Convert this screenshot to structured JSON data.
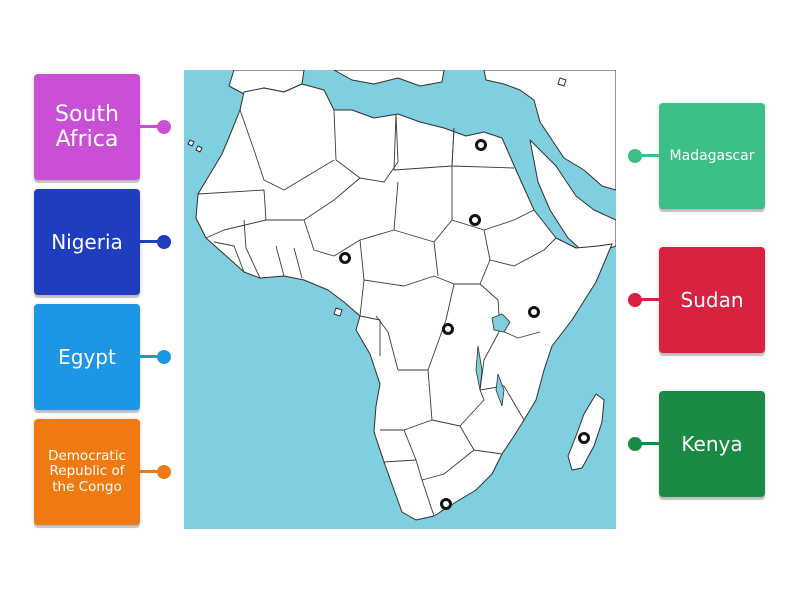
{
  "map": {
    "markers": [
      {
        "id": "egypt",
        "x": 0.687,
        "y": 0.163
      },
      {
        "id": "sudan",
        "x": 0.673,
        "y": 0.326
      },
      {
        "id": "nigeria",
        "x": 0.373,
        "y": 0.41
      },
      {
        "id": "drc",
        "x": 0.612,
        "y": 0.565
      },
      {
        "id": "kenya",
        "x": 0.81,
        "y": 0.528
      },
      {
        "id": "madagascar",
        "x": 0.925,
        "y": 0.802
      },
      {
        "id": "south_africa",
        "x": 0.606,
        "y": 0.945
      }
    ]
  },
  "left_labels": [
    {
      "text": "South Africa",
      "color": "#c84fd6",
      "line_color": "#c84fd6"
    },
    {
      "text": "Nigeria",
      "color": "#1f3ebf",
      "line_color": "#1f3ebf"
    },
    {
      "text": "Egypt",
      "color": "#1e96e6",
      "line_color": "#1e96e6"
    },
    {
      "text": "Democratic Republic of the Congo",
      "color": "#f07a12",
      "line_color": "#f07a12"
    }
  ],
  "right_labels": [
    {
      "text": "Madagascar",
      "color": "#3cbf86",
      "line_color": "#3cbf86"
    },
    {
      "text": "Sudan",
      "color": "#d8223f",
      "line_color": "#d8223f"
    },
    {
      "text": "Kenya",
      "color": "#1b8a45",
      "line_color": "#1b8a45"
    }
  ]
}
